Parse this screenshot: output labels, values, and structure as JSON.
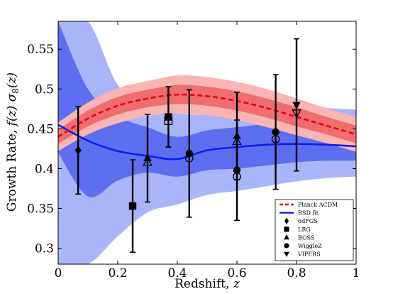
{
  "chart_data": {
    "type": "line",
    "title": "",
    "xlabel": "Redshift,",
    "xlabel_symbol": "z",
    "ylabel": "Growth Rate,",
    "ylabel_symbol": "f(z) σ",
    "ylabel_sub": "8",
    "ylabel_paren": "(z)",
    "xlim": [
      0,
      1
    ],
    "ylim": [
      0.28,
      0.585
    ],
    "xticks": [
      "0",
      "0.2",
      "0.4",
      "0.6",
      "0.8",
      "1"
    ],
    "yticks": [
      "0.3",
      "0.35",
      "0.4",
      "0.45",
      "0.5",
      "0.55"
    ],
    "grid": false,
    "legend_position": "bottom-right",
    "colors": {
      "planck_line": "#e8001c",
      "planck_band_inner": "#f06d6d",
      "planck_band_outer": "#f9b4b4",
      "rsd_line": "#0a1ee8",
      "rsd_band_inner": "#5e6ef0",
      "rsd_band_outer": "#aab4f8",
      "points": "#000000"
    },
    "legend": [
      {
        "label": "Planck ΛCDM",
        "kind": "dashed-line",
        "color": "#e8001c"
      },
      {
        "label": "RSD fit",
        "kind": "solid-line",
        "color": "#0a1ee8"
      },
      {
        "label": "6dFGS",
        "kind": "marker",
        "marker": "diamond"
      },
      {
        "label": "LRG",
        "kind": "marker",
        "marker": "square"
      },
      {
        "label": "BOSS",
        "kind": "marker",
        "marker": "triangle-up"
      },
      {
        "label": "WiggleZ",
        "kind": "marker",
        "marker": "circle"
      },
      {
        "label": "VIPERS",
        "kind": "marker",
        "marker": "triangle-down"
      }
    ],
    "series": [
      {
        "name": "Planck ΛCDM",
        "style": "dashed",
        "x": [
          0,
          0.1,
          0.2,
          0.3,
          0.4,
          0.5,
          0.6,
          0.7,
          0.8,
          0.9,
          1.0
        ],
        "y": [
          0.44,
          0.463,
          0.479,
          0.488,
          0.493,
          0.491,
          0.485,
          0.476,
          0.465,
          0.454,
          0.443
        ],
        "band_inner_halfwidth": [
          0.009,
          0.01,
          0.011,
          0.011,
          0.012,
          0.012,
          0.012,
          0.012,
          0.012,
          0.011,
          0.011
        ],
        "band_outer_halfwidth": [
          0.018,
          0.02,
          0.022,
          0.022,
          0.024,
          0.024,
          0.024,
          0.024,
          0.023,
          0.022,
          0.022
        ]
      },
      {
        "name": "RSD fit",
        "style": "solid",
        "x": [
          0,
          0.1,
          0.2,
          0.3,
          0.4,
          0.5,
          0.6,
          0.7,
          0.8,
          0.9,
          1.0
        ],
        "y": [
          0.455,
          0.435,
          0.422,
          0.416,
          0.412,
          0.423,
          0.427,
          0.43,
          0.431,
          0.43,
          0.428
        ],
        "band_inner_lower": [
          0.42,
          0.365,
          0.385,
          0.395,
          0.39,
          0.398,
          0.4,
          0.404,
          0.408,
          0.41,
          0.41
        ],
        "band_inner_upper": [
          0.585,
          0.5,
          0.466,
          0.452,
          0.44,
          0.448,
          0.452,
          0.456,
          0.457,
          0.455,
          0.453
        ],
        "band_outer_lower": [
          0.28,
          0.28,
          0.315,
          0.345,
          0.355,
          0.367,
          0.372,
          0.378,
          0.384,
          0.388,
          0.39
        ],
        "band_outer_upper": [
          0.585,
          0.585,
          0.505,
          0.482,
          0.47,
          0.468,
          0.472,
          0.478,
          0.478,
          0.476,
          0.474
        ]
      }
    ],
    "points": [
      {
        "survey": "6dFGS",
        "marker": "diamond",
        "x": 0.067,
        "y": 0.423,
        "yerr": 0.055,
        "filled": true
      },
      {
        "survey": "LRG",
        "marker": "square",
        "x": 0.25,
        "y": 0.353,
        "yerr": 0.058,
        "filled": true
      },
      {
        "survey": "LRG",
        "marker": "square",
        "x": 0.37,
        "y": 0.46,
        "yerr": 0.038,
        "filled": false
      },
      {
        "survey": "LRG",
        "marker": "square",
        "x": 0.37,
        "y": 0.465,
        "yerr": 0.038,
        "filled": true
      },
      {
        "survey": "BOSS",
        "marker": "triangle-up",
        "x": 0.3,
        "y": 0.408,
        "yerr": 0.055,
        "filled": false
      },
      {
        "survey": "BOSS",
        "marker": "triangle-up",
        "x": 0.3,
        "y": 0.413,
        "yerr": 0.055,
        "filled": true
      },
      {
        "survey": "BOSS",
        "marker": "triangle-up",
        "x": 0.6,
        "y": 0.434,
        "yerr": 0.055,
        "filled": false
      },
      {
        "survey": "BOSS",
        "marker": "triangle-up",
        "x": 0.6,
        "y": 0.441,
        "yerr": 0.055,
        "filled": true
      },
      {
        "survey": "WiggleZ",
        "marker": "circle",
        "x": 0.44,
        "y": 0.413,
        "yerr": 0.08,
        "filled": false
      },
      {
        "survey": "WiggleZ",
        "marker": "circle",
        "x": 0.44,
        "y": 0.419,
        "yerr": 0.08,
        "filled": true
      },
      {
        "survey": "WiggleZ",
        "marker": "circle",
        "x": 0.6,
        "y": 0.39,
        "yerr": 0.063,
        "filled": false
      },
      {
        "survey": "WiggleZ",
        "marker": "circle",
        "x": 0.6,
        "y": 0.398,
        "yerr": 0.063,
        "filled": true
      },
      {
        "survey": "WiggleZ",
        "marker": "circle",
        "x": 0.73,
        "y": 0.437,
        "yerr": 0.072,
        "filled": false
      },
      {
        "survey": "WiggleZ",
        "marker": "circle",
        "x": 0.73,
        "y": 0.446,
        "yerr": 0.072,
        "filled": true
      },
      {
        "survey": "VIPERS",
        "marker": "triangle-down",
        "x": 0.8,
        "y": 0.47,
        "yerr": 0.08,
        "filled": false
      },
      {
        "survey": "VIPERS",
        "marker": "triangle-down",
        "x": 0.8,
        "y": 0.48,
        "yerr": 0.083,
        "filled": true
      }
    ]
  }
}
